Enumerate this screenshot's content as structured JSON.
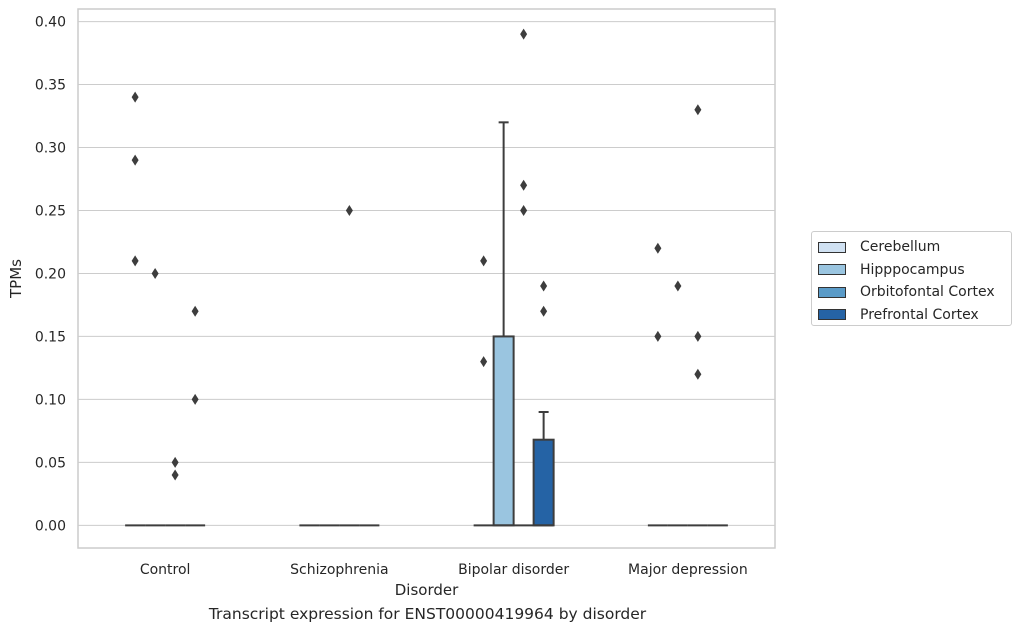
{
  "chart_data": {
    "type": "box",
    "title": "",
    "caption": "Transcript expression for ENST00000419964 by disorder",
    "xlabel": "Disorder",
    "ylabel": "TPMs",
    "ylim": [
      -0.018,
      0.41
    ],
    "yticks": [
      "0.00",
      "0.05",
      "0.10",
      "0.15",
      "0.20",
      "0.25",
      "0.30",
      "0.35",
      "0.40"
    ],
    "grid": "horizontal",
    "legend_position": "right",
    "categories": [
      "Control",
      "Schizophrenia",
      "Bipolar disorder",
      "Major depression"
    ],
    "series": [
      {
        "name": "Cerebellum",
        "color": "#d0e1f2",
        "boxes": [
          {
            "category": "Control",
            "min": 0,
            "q1": 0,
            "median": 0,
            "q3": 0,
            "max": 0,
            "outliers": [
              0.34,
              0.29,
              0.21
            ]
          },
          {
            "category": "Schizophrenia",
            "min": 0,
            "q1": 0,
            "median": 0,
            "q3": 0,
            "max": 0,
            "outliers": []
          },
          {
            "category": "Bipolar disorder",
            "min": 0,
            "q1": 0,
            "median": 0,
            "q3": 0,
            "max": 0,
            "outliers": [
              0.21,
              0.13
            ]
          },
          {
            "category": "Major depression",
            "min": 0,
            "q1": 0,
            "median": 0,
            "q3": 0,
            "max": 0,
            "outliers": [
              0.22,
              0.15
            ]
          }
        ]
      },
      {
        "name": "Hipppocampus",
        "color": "#9ac5e0",
        "boxes": [
          {
            "category": "Control",
            "min": 0,
            "q1": 0,
            "median": 0,
            "q3": 0,
            "max": 0,
            "outliers": [
              0.2
            ]
          },
          {
            "category": "Schizophrenia",
            "min": 0,
            "q1": 0,
            "median": 0,
            "q3": 0,
            "max": 0,
            "outliers": []
          },
          {
            "category": "Bipolar disorder",
            "min": 0,
            "q1": 0,
            "median": 0,
            "q3": 0.15,
            "max": 0.32,
            "outliers": []
          },
          {
            "category": "Major depression",
            "min": 0,
            "q1": 0,
            "median": 0,
            "q3": 0,
            "max": 0,
            "outliers": [
              0.19
            ]
          }
        ]
      },
      {
        "name": "Orbitofontal Cortex",
        "color": "#5a9bc8",
        "boxes": [
          {
            "category": "Control",
            "min": 0,
            "q1": 0,
            "median": 0,
            "q3": 0,
            "max": 0,
            "outliers": [
              0.05,
              0.04
            ]
          },
          {
            "category": "Schizophrenia",
            "min": 0,
            "q1": 0,
            "median": 0,
            "q3": 0,
            "max": 0,
            "outliers": [
              0.25
            ]
          },
          {
            "category": "Bipolar disorder",
            "min": 0,
            "q1": 0,
            "median": 0,
            "q3": 0,
            "max": 0,
            "outliers": [
              0.39,
              0.27,
              0.25
            ]
          },
          {
            "category": "Major depression",
            "min": 0,
            "q1": 0,
            "median": 0,
            "q3": 0,
            "max": 0,
            "outliers": [
              0.33,
              0.15,
              0.12
            ]
          }
        ]
      },
      {
        "name": "Prefrontal Cortex",
        "color": "#2563a5",
        "boxes": [
          {
            "category": "Control",
            "min": 0,
            "q1": 0,
            "median": 0,
            "q3": 0,
            "max": 0,
            "outliers": [
              0.17,
              0.1
            ]
          },
          {
            "category": "Schizophrenia",
            "min": 0,
            "q1": 0,
            "median": 0,
            "q3": 0,
            "max": 0,
            "outliers": []
          },
          {
            "category": "Bipolar disorder",
            "min": 0,
            "q1": 0,
            "median": 0,
            "q3": 0.068,
            "max": 0.09,
            "outliers": [
              0.19,
              0.17
            ]
          },
          {
            "category": "Major depression",
            "min": 0,
            "q1": 0,
            "median": 0,
            "q3": 0,
            "max": 0,
            "outliers": []
          }
        ]
      }
    ]
  }
}
